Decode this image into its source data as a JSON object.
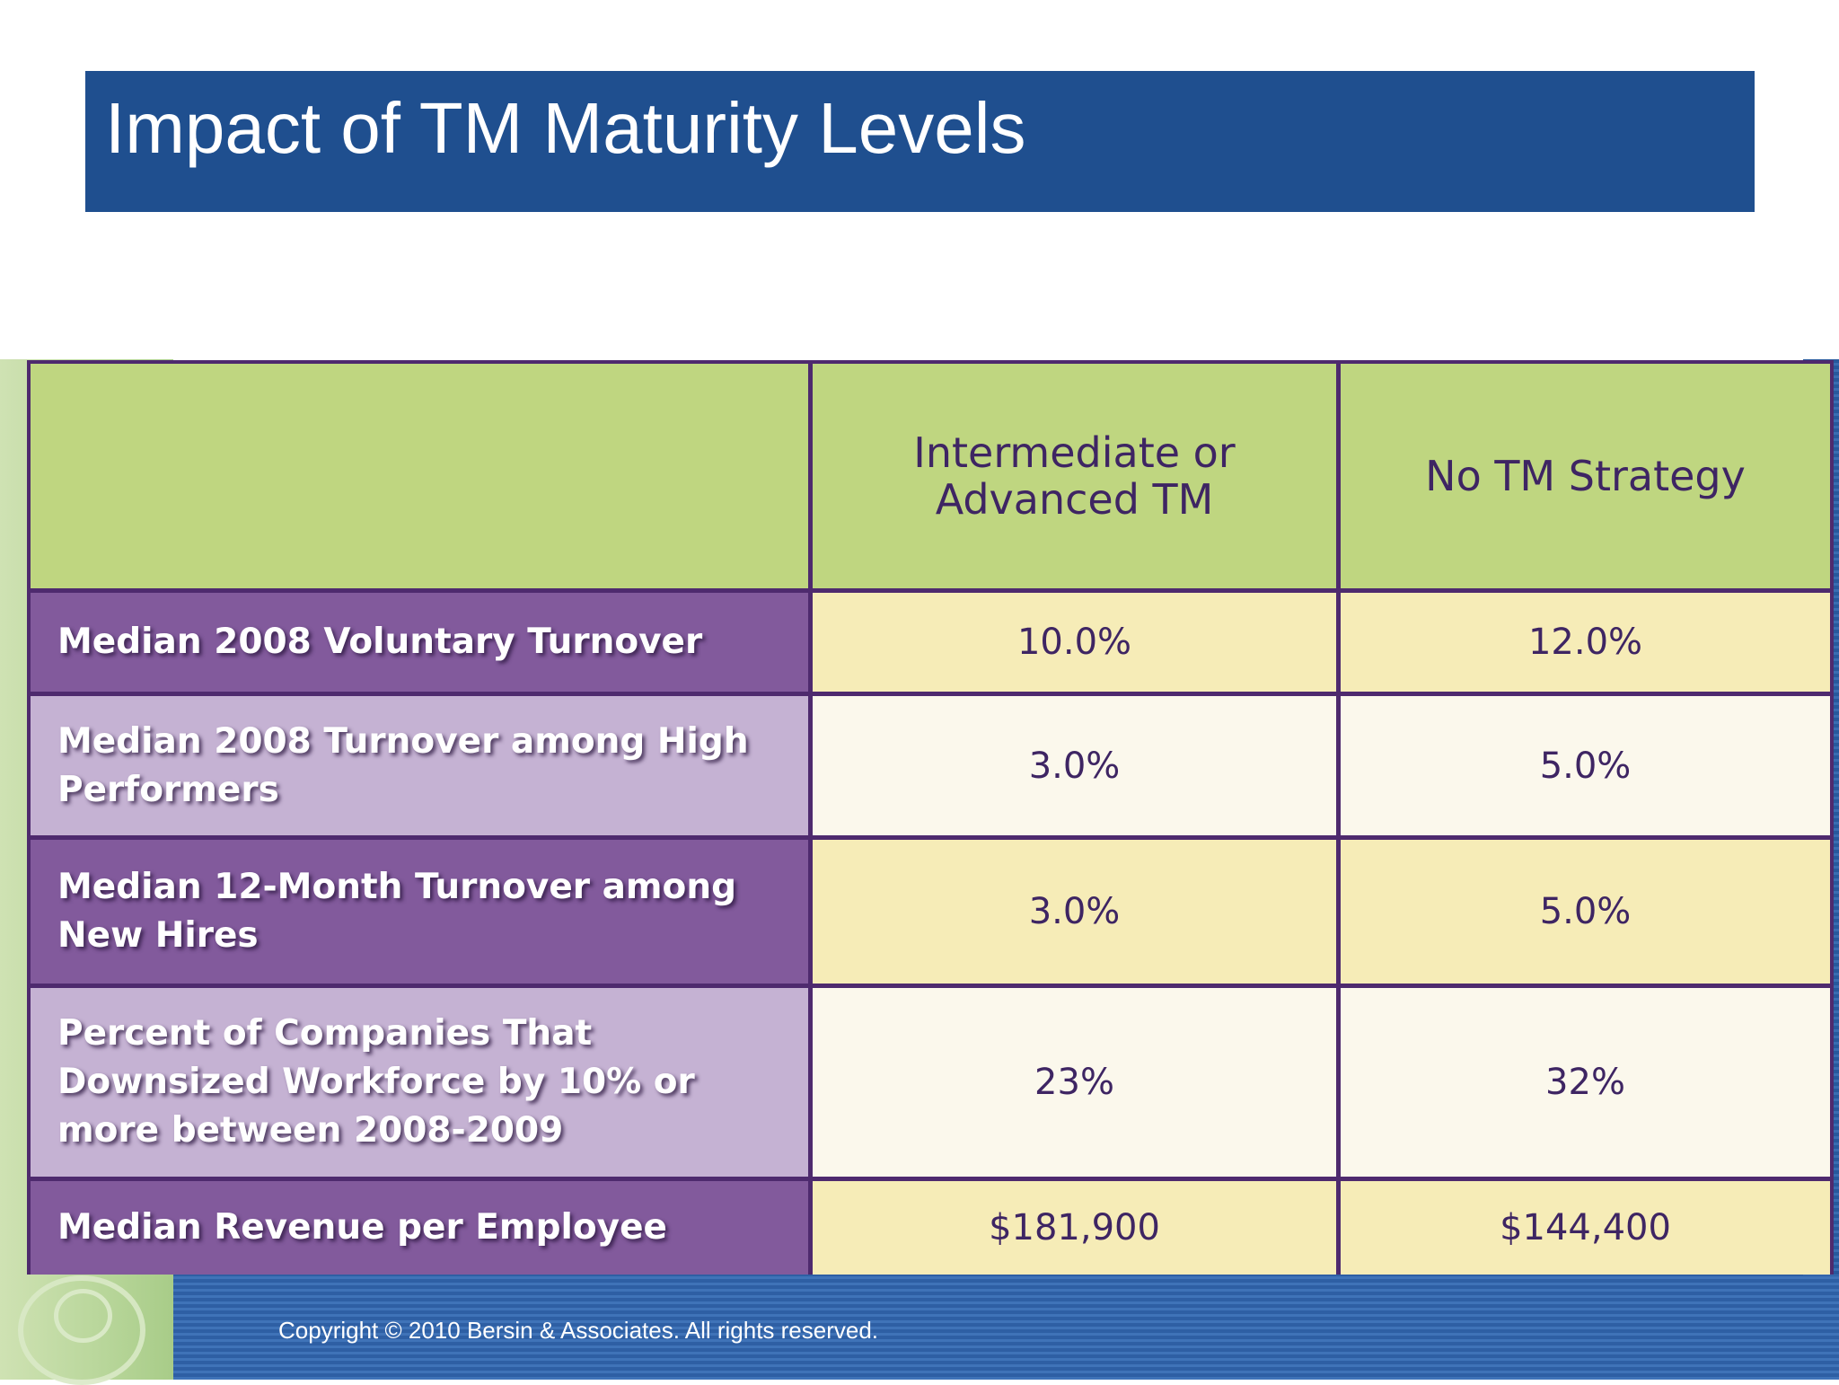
{
  "title": "Impact of TM Maturity Levels",
  "table": {
    "columns": [
      "",
      "Intermediate or Advanced TM",
      "No TM Strategy"
    ],
    "rows": [
      {
        "label": "Median 2008 Voluntary Turnover",
        "values": [
          "10.0%",
          "12.0%"
        ]
      },
      {
        "label": "Median 2008 Turnover among High Performers",
        "values": [
          "3.0%",
          "5.0%"
        ]
      },
      {
        "label": "Median 12-Month Turnover among New Hires",
        "values": [
          "3.0%",
          "5.0%"
        ]
      },
      {
        "label": "Percent of Companies That Downsized Workforce by 10% or more between 2008-2009",
        "values": [
          "23%",
          "32%"
        ]
      },
      {
        "label": "Median Revenue per Employee",
        "values": [
          "$181,900",
          "$144,400"
        ]
      }
    ]
  },
  "footer": {
    "copyright": "Copyright © 2010 Bersin & Associates. All rights reserved."
  },
  "colors": {
    "title_bar": "#1f4f8f",
    "header_green": "#bfd680",
    "row_dark_purple": "#825a9c",
    "row_light_purple": "#c5b2d3",
    "grid_border": "#4e2a6e"
  }
}
